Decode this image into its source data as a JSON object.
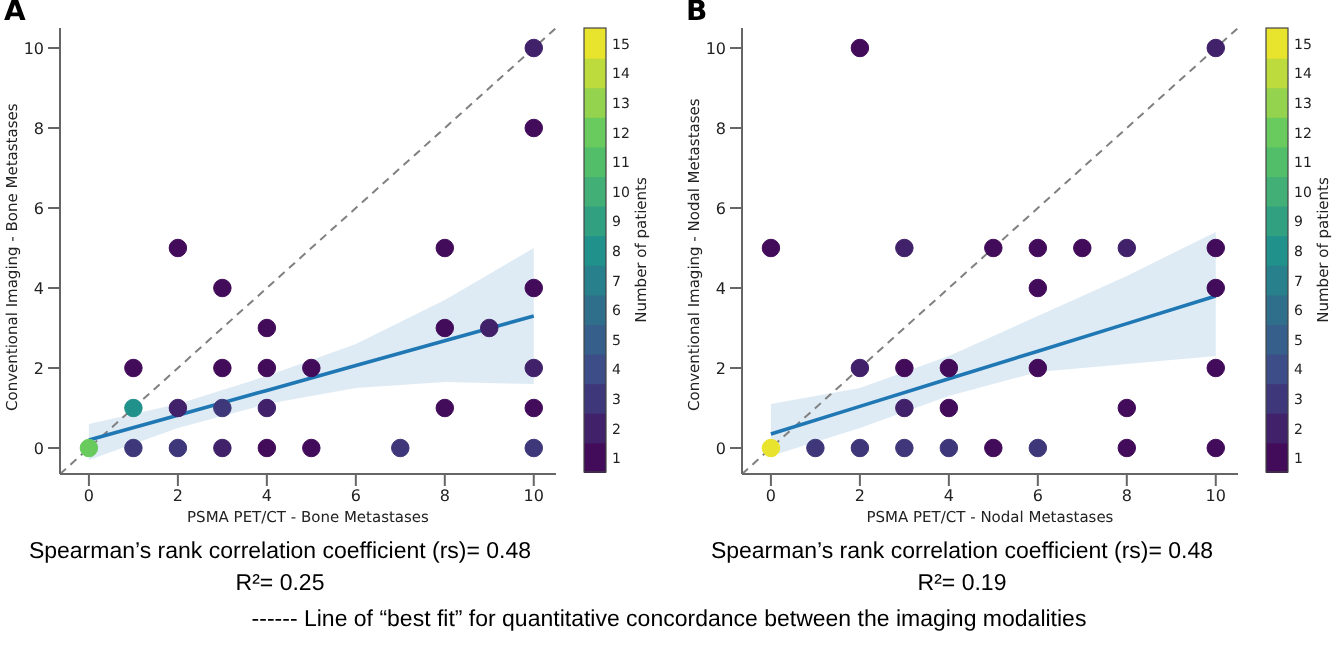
{
  "chart_data": [
    {
      "type": "scatter",
      "title": "A",
      "xlabel": "PSMA PET/CT - Bone Metastases",
      "ylabel": "Conventional Imaging - Bone Metastases",
      "clabel": "Number of patients",
      "xlim": [
        -0.65,
        10.5
      ],
      "ylim": [
        -0.65,
        10.5
      ],
      "xticks": [
        0,
        2,
        4,
        6,
        8,
        10
      ],
      "yticks": [
        0,
        2,
        4,
        6,
        8,
        10
      ],
      "clim": [
        0.5,
        15.5
      ],
      "cticks": [
        1,
        2,
        3,
        4,
        5,
        6,
        7,
        8,
        9,
        10,
        11,
        12,
        13,
        14,
        15
      ],
      "annotations": [
        "Spearman’s rank correlation coefficient (rs)= 0.48",
        "R²= 0.25",
        "------ Line of “best fit” for quantitative concordance between the imaging modalities"
      ],
      "series": [
        {
          "type": "line",
          "line_style": "dashed",
          "color": "#808080",
          "x": [
            -0.65,
            10.5
          ],
          "values": [
            -0.65,
            10.5
          ]
        },
        {
          "type": "line",
          "color": "#1f77b4",
          "x": [
            0,
            2,
            4,
            6,
            8,
            10
          ],
          "values": [
            0.2,
            0.82,
            1.44,
            2.06,
            2.68,
            3.3
          ],
          "lower": [
            -0.3,
            0.5,
            1.1,
            1.5,
            1.65,
            1.6
          ],
          "upper": [
            0.6,
            1.1,
            1.8,
            2.6,
            3.7,
            5.0
          ]
        },
        {
          "type": "scatter",
          "x": [
            0,
            1,
            1,
            1,
            2,
            2,
            2,
            3,
            3,
            3,
            3,
            4,
            4,
            4,
            4,
            5,
            5,
            7,
            8,
            8,
            8,
            9,
            10,
            10,
            10,
            10,
            10,
            10
          ],
          "values": [
            0,
            0,
            1,
            2,
            0,
            1,
            5,
            0,
            1,
            2,
            4,
            0,
            1,
            2,
            3,
            0,
            2,
            0,
            1,
            3,
            5,
            3,
            0,
            1,
            2,
            4,
            8,
            10
          ],
          "cvalues": [
            12,
            3,
            8,
            1,
            3,
            2,
            1,
            2,
            3,
            1,
            1,
            1,
            2,
            1,
            1,
            1,
            1,
            3,
            1,
            1,
            1,
            2,
            3,
            1,
            2,
            1,
            1,
            2
          ],
          "colors": [
            "#69cb5e",
            "#3e3779",
            "#21918c",
            "#430c5b",
            "#3e3779",
            "#40216a",
            "#430c5b",
            "#40216a",
            "#3e3779",
            "#430c5b",
            "#430c5b",
            "#430c5b",
            "#40216a",
            "#430c5b",
            "#430c5b",
            "#430c5b",
            "#430c5b",
            "#3e3779",
            "#430c5b",
            "#430c5b",
            "#430c5b",
            "#40216a",
            "#3e3779",
            "#430c5b",
            "#40216a",
            "#430c5b",
            "#430c5b",
            "#40216a"
          ]
        }
      ]
    },
    {
      "type": "scatter",
      "title": "B",
      "xlabel": "PSMA PET/CT - Nodal Metastases",
      "ylabel": "Conventional Imaging - Nodal Metastases",
      "clabel": "Number of patients",
      "xlim": [
        -0.65,
        10.5
      ],
      "ylim": [
        -0.65,
        10.5
      ],
      "xticks": [
        0,
        2,
        4,
        6,
        8,
        10
      ],
      "yticks": [
        0,
        2,
        4,
        6,
        8,
        10
      ],
      "clim": [
        0.5,
        15.5
      ],
      "cticks": [
        1,
        2,
        3,
        4,
        5,
        6,
        7,
        8,
        9,
        10,
        11,
        12,
        13,
        14,
        15
      ],
      "annotations": [
        "Spearman’s rank correlation coefficient (rs)= 0.48",
        "R²= 0.19"
      ],
      "series": [
        {
          "type": "line",
          "line_style": "dashed",
          "color": "#808080",
          "x": [
            -0.65,
            10.5
          ],
          "values": [
            -0.65,
            10.5
          ]
        },
        {
          "type": "line",
          "color": "#1f77b4",
          "x": [
            0,
            2,
            4,
            6,
            8,
            10
          ],
          "values": [
            0.35,
            1.04,
            1.73,
            2.42,
            3.11,
            3.8
          ],
          "lower": [
            -0.2,
            0.5,
            1.3,
            1.9,
            2.1,
            2.3
          ],
          "upper": [
            1.1,
            1.5,
            2.3,
            3.3,
            4.3,
            5.4
          ]
        },
        {
          "type": "scatter",
          "x": [
            0,
            0,
            1,
            2,
            2,
            2,
            3,
            3,
            3,
            3,
            4,
            4,
            4,
            5,
            5,
            6,
            6,
            6,
            6,
            7,
            8,
            8,
            8,
            10,
            10,
            10,
            10,
            10
          ],
          "values": [
            0,
            5,
            0,
            0,
            2,
            10,
            0,
            1,
            2,
            5,
            0,
            1,
            2,
            0,
            5,
            0,
            2,
            4,
            5,
            5,
            0,
            1,
            5,
            0,
            2,
            4,
            5,
            10
          ],
          "cvalues": [
            15,
            1,
            3,
            3,
            2,
            1,
            3,
            2,
            1,
            2,
            3,
            1,
            1,
            1,
            1,
            3,
            1,
            1,
            1,
            1,
            1,
            1,
            2,
            1,
            1,
            1,
            1,
            2
          ],
          "colors": [
            "#e8e32d",
            "#430c5b",
            "#3e3779",
            "#3e3779",
            "#40216a",
            "#430c5b",
            "#3e3779",
            "#40216a",
            "#430c5b",
            "#40216a",
            "#3e3779",
            "#430c5b",
            "#430c5b",
            "#430c5b",
            "#430c5b",
            "#3e3779",
            "#430c5b",
            "#430c5b",
            "#430c5b",
            "#430c5b",
            "#430c5b",
            "#430c5b",
            "#40216a",
            "#430c5b",
            "#430c5b",
            "#430c5b",
            "#430c5b",
            "#40216a"
          ]
        }
      ]
    }
  ]
}
